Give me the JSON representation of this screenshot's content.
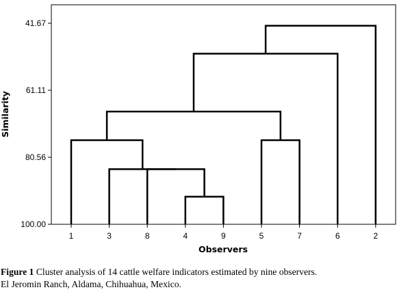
{
  "chart_data": {
    "type": "dendrogram",
    "ylabel": "Similarity",
    "xlabel": "Observers",
    "ylim": [
      100.0,
      41.67
    ],
    "y_ticks": [
      "41.67",
      "61.11",
      "80.56",
      "100.00"
    ],
    "y_tick_values": [
      41.67,
      61.11,
      80.56,
      100.0
    ],
    "leaf_order": [
      "1",
      "3",
      "8",
      "4",
      "9",
      "5",
      "7",
      "6",
      "2"
    ],
    "merges": [
      {
        "members": [
          "4",
          "9"
        ],
        "similarity": 92.0
      },
      {
        "members": [
          "8",
          "4-9"
        ],
        "similarity": 84.0
      },
      {
        "members": [
          "3",
          "8-4-9"
        ],
        "similarity": 84.0
      },
      {
        "members": [
          "5",
          "7"
        ],
        "similarity": 75.6
      },
      {
        "members": [
          "1",
          "3-8-4-9"
        ],
        "similarity": 75.6
      },
      {
        "members": [
          "1-3-8-4-9",
          "5-7"
        ],
        "similarity": 67.3
      },
      {
        "members": [
          "1-3-8-4-9-5-7",
          "6"
        ],
        "similarity": 50.5
      },
      {
        "members": [
          "1-3-8-4-9-5-7-6",
          "2"
        ],
        "similarity": 42.4
      }
    ],
    "line_color": "#000000"
  },
  "caption": {
    "label": "Figure 1",
    "line1": " Cluster analysis of 14 cattle welfare  indicators estimated by nine observers.",
    "line2": "El  Jeromin  Ranch, Aldama,  Chihuahua,  Mexico."
  }
}
